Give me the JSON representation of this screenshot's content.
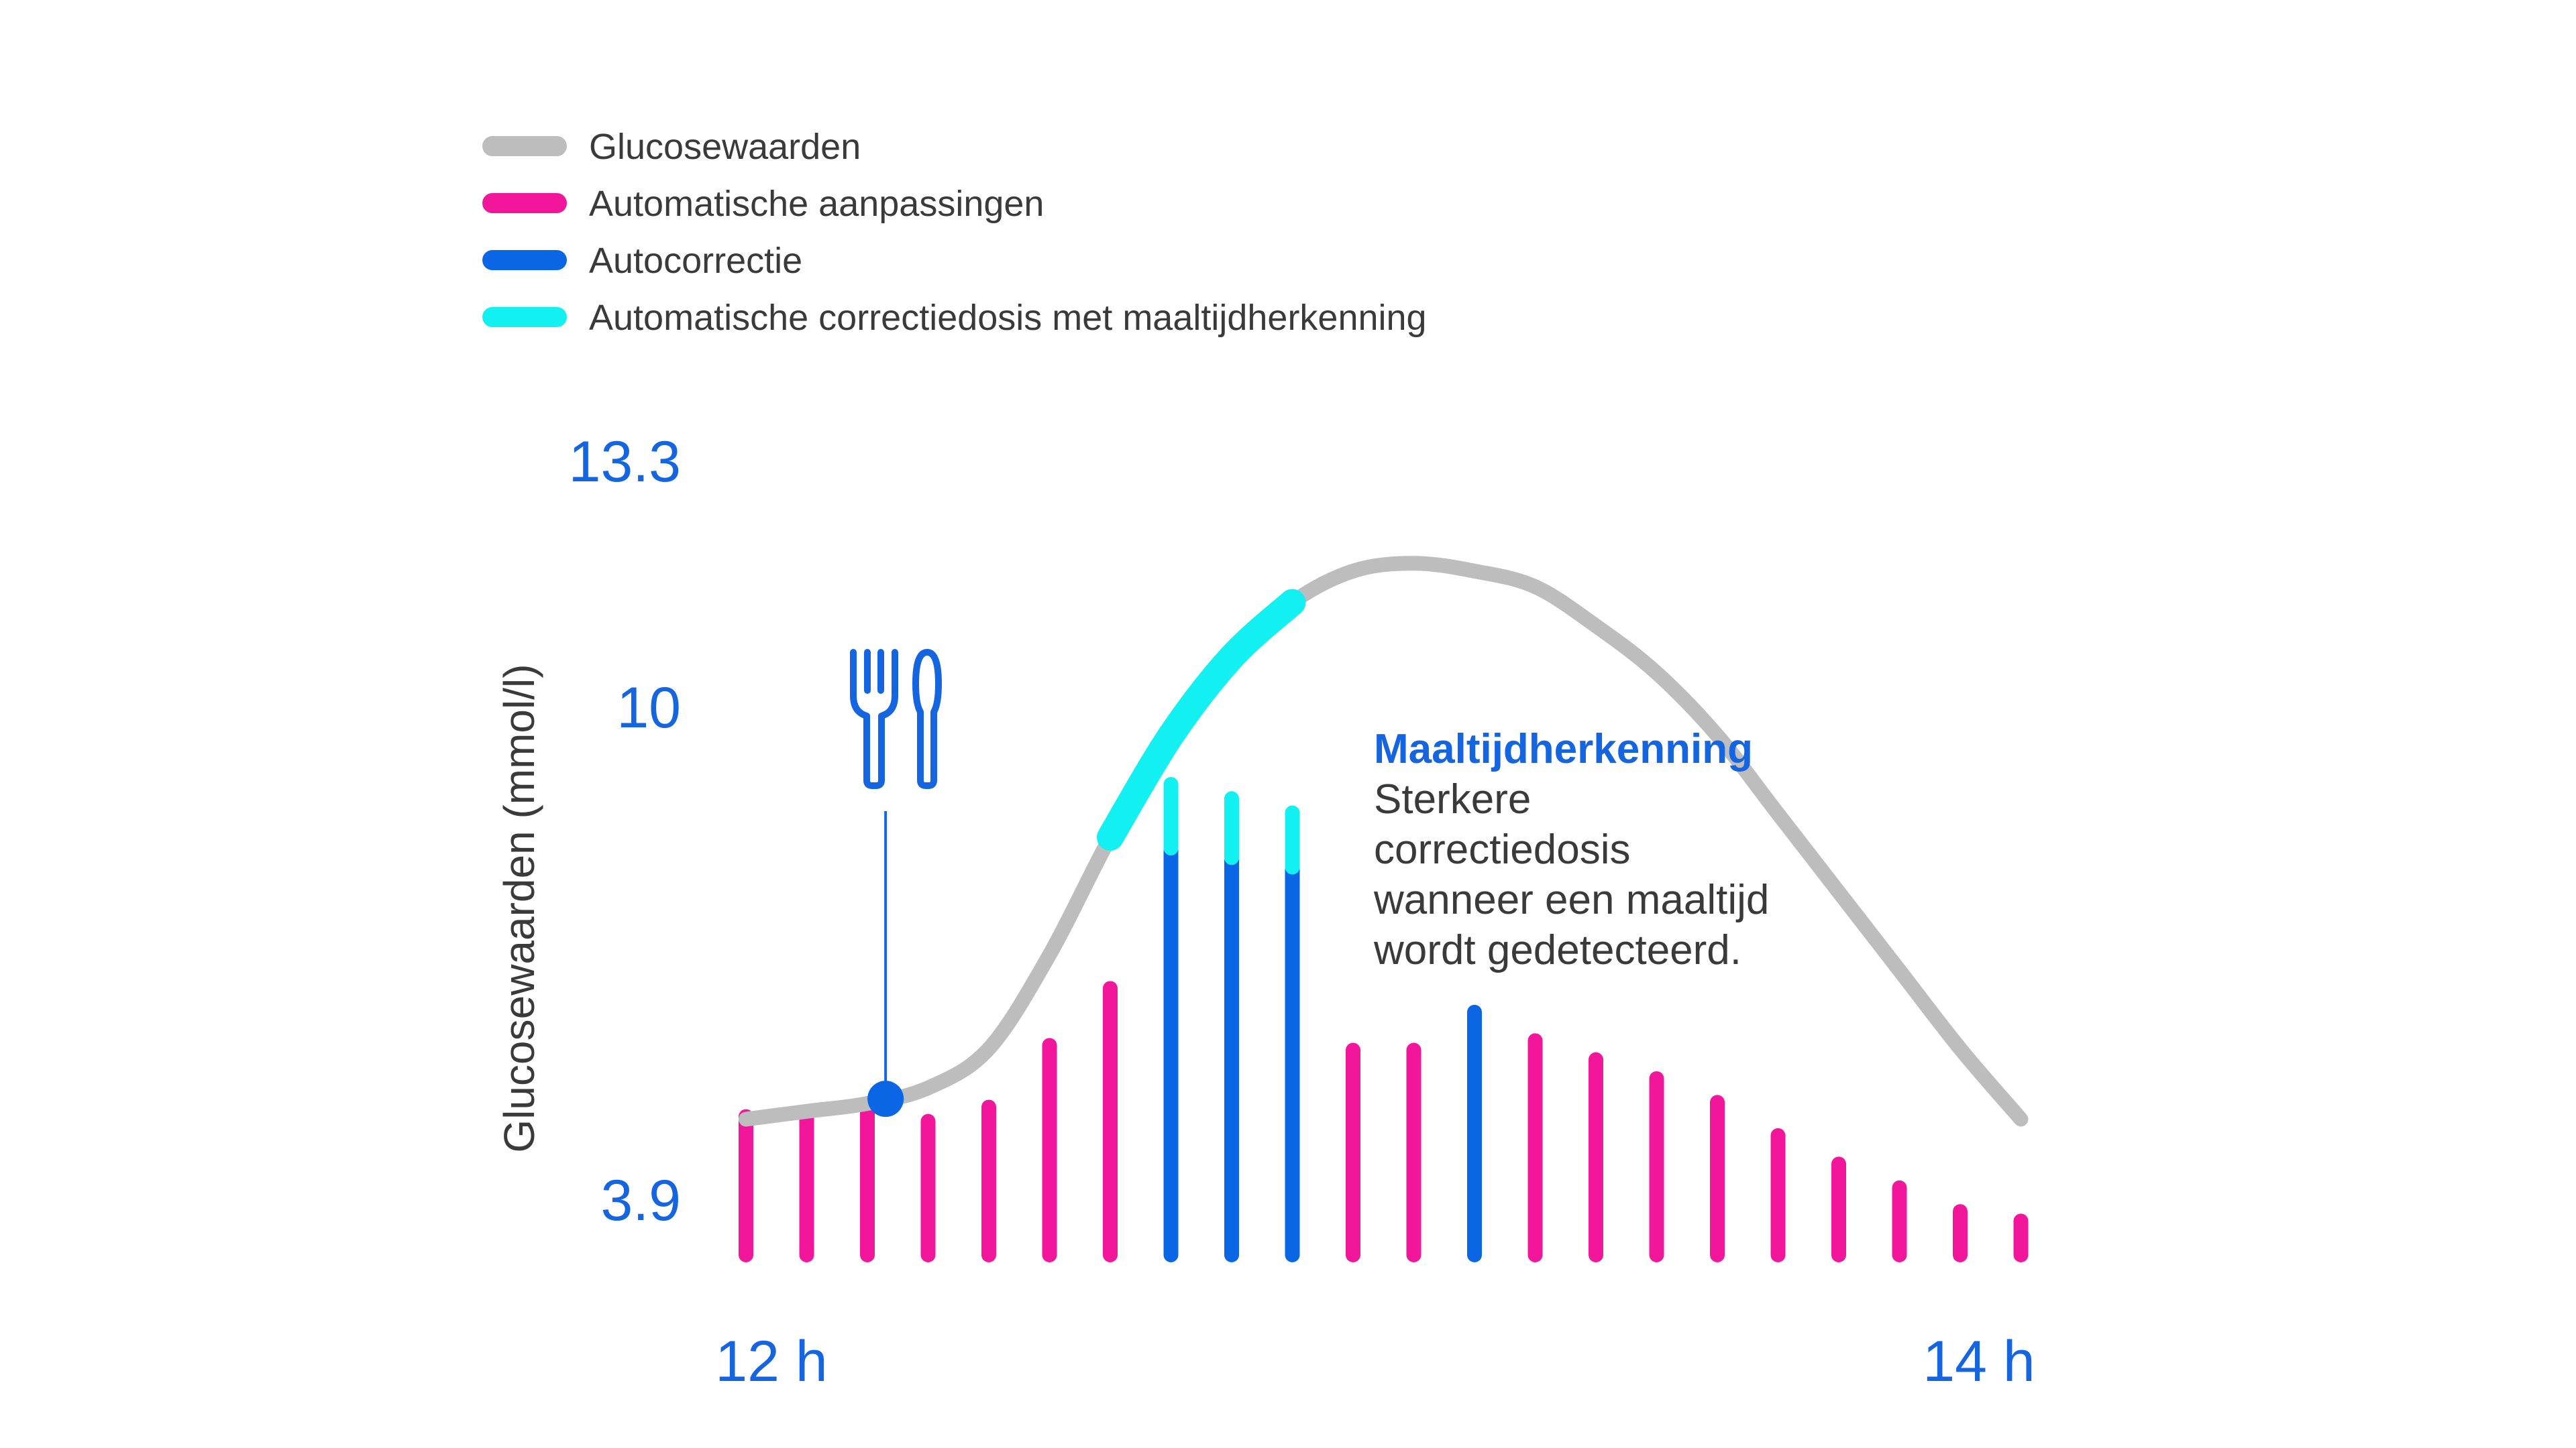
{
  "colors": {
    "glucose": "#bdbdbd",
    "automatic": "#f2169b",
    "autocorrection": "#0b66e6",
    "meal_correction": "#13f0f2",
    "axis_text": "#1565e0",
    "body_text": "#3a3a3a"
  },
  "legend": [
    {
      "label": "Glucosewaarden",
      "color_key": "glucose"
    },
    {
      "label": "Automatische aanpassingen",
      "color_key": "automatic"
    },
    {
      "label": "Autocorrectie",
      "color_key": "autocorrection"
    },
    {
      "label": "Automatische correctiedosis met maaltijdherkenning",
      "color_key": "meal_correction"
    }
  ],
  "annotation": {
    "title": "Maaltijdherkenning",
    "lines": [
      "Sterkere",
      "correctiedosis",
      "wanneer een maaltijd",
      "wordt gedetecteerd."
    ]
  },
  "meal_marker": {
    "icon": "fork-spoon-icon",
    "time_h": 12.23
  },
  "chart_data": {
    "type": "line+bar",
    "ylabel": "Glucosewaarden (mmol/l)",
    "yticks": [
      "13.3",
      "10",
      "3.9"
    ],
    "ytick_values": [
      13.3,
      10,
      3.9
    ],
    "ylim": [
      3.9,
      13.3
    ],
    "xticks": [
      "12 h",
      "14 h"
    ],
    "xtick_values": [
      12,
      14
    ],
    "xlim": [
      12,
      14
    ],
    "glucose_curve": {
      "name": "Glucosewaarden",
      "x": [
        12.0,
        12.1,
        12.2,
        12.3,
        12.4,
        12.5,
        12.6,
        12.7,
        12.8,
        12.9,
        13.0,
        13.1,
        13.2,
        13.3,
        13.4,
        13.5,
        13.6,
        13.7,
        13.8,
        13.9,
        14.0,
        14.1
      ],
      "y": [
        5.0,
        5.1,
        5.2,
        5.4,
        5.9,
        7.1,
        8.6,
        9.9,
        10.9,
        11.6,
        12.0,
        12.1,
        12.0,
        11.8,
        11.3,
        10.7,
        9.9,
        8.9,
        7.9,
        6.9,
        5.9,
        5.0
      ]
    },
    "meal_correction_segment": {
      "x": [
        12.6,
        12.9
      ]
    },
    "insulin_bars": {
      "x": [
        12.0,
        12.1,
        12.2,
        12.3,
        12.4,
        12.5,
        12.6,
        12.7,
        12.8,
        12.9,
        13.0,
        13.1,
        13.2,
        13.3,
        13.4,
        13.5,
        13.6,
        13.7,
        13.8,
        13.9,
        14.0,
        14.1
      ],
      "automatic": [
        0.3,
        0.3,
        0.31,
        0.29,
        0.32,
        0.45,
        0.57,
        0.0,
        0.0,
        0.0,
        0.44,
        0.44,
        0.0,
        0.46,
        0.42,
        0.38,
        0.33,
        0.26,
        0.2,
        0.15,
        0.1,
        0.08
      ],
      "autocorrection": [
        0.0,
        0.0,
        0.0,
        0.0,
        0.0,
        0.0,
        0.0,
        0.86,
        0.84,
        0.82,
        0.0,
        0.0,
        0.52,
        0.0,
        0.0,
        0.0,
        0.0,
        0.0,
        0.0,
        0.0,
        0.0,
        0.0
      ],
      "meal_correction": [
        0.0,
        0.0,
        0.0,
        0.0,
        0.0,
        0.0,
        0.0,
        0.14,
        0.13,
        0.12,
        0.0,
        0.0,
        0.0,
        0.0,
        0.0,
        0.0,
        0.0,
        0.0,
        0.0,
        0.0,
        0.0,
        0.0
      ]
    }
  }
}
